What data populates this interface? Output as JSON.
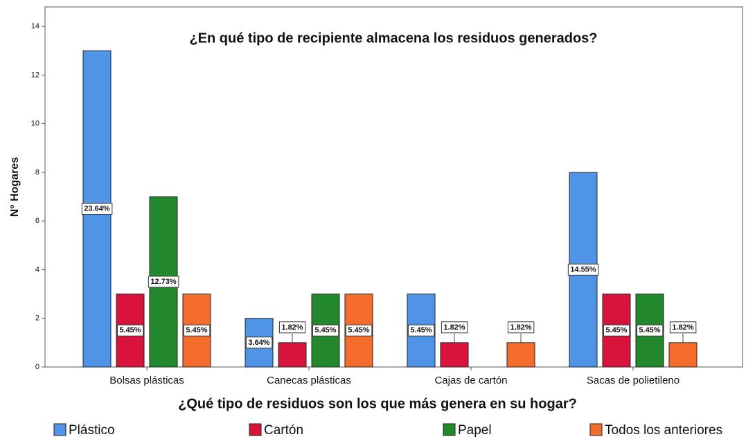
{
  "chart_data": {
    "type": "bar",
    "title": "¿En qué tipo de recipiente almacena los residuos generados?",
    "x_label": "¿Qué tipo de residuos son los que más genera en su hogar?",
    "y_label": "N° Hogares",
    "categories": [
      "Bolsas plásticas",
      "Canecas plásticas",
      "Cajas de cartón",
      "Sacas de polietileno"
    ],
    "series": [
      {
        "name": "Plástico",
        "color": "#4f94e6",
        "values": [
          13,
          2,
          3,
          8
        ],
        "percent_labels": [
          "23.64%",
          "3.64%",
          "5.45%",
          "14.55%"
        ]
      },
      {
        "name": "Cartón",
        "color": "#d8143c",
        "values": [
          3,
          1,
          1,
          3
        ],
        "percent_labels": [
          "5.45%",
          "1.82%",
          "1.82%",
          "5.45%"
        ]
      },
      {
        "name": "Papel",
        "color": "#23882b",
        "values": [
          7,
          3,
          0,
          3
        ],
        "percent_labels": [
          "12.73%",
          "5.45%",
          null,
          "5.45%"
        ]
      },
      {
        "name": "Todos los anteriores",
        "color": "#f46d2c",
        "values": [
          3,
          3,
          1,
          1
        ],
        "percent_labels": [
          "5.45%",
          "5.45%",
          "1.82%",
          "1.82%"
        ]
      }
    ],
    "ylim": [
      0,
      14.8
    ],
    "yticks": [
      0,
      2,
      4,
      6,
      8,
      10,
      12,
      14
    ],
    "grid": false,
    "legend": "bottom"
  }
}
